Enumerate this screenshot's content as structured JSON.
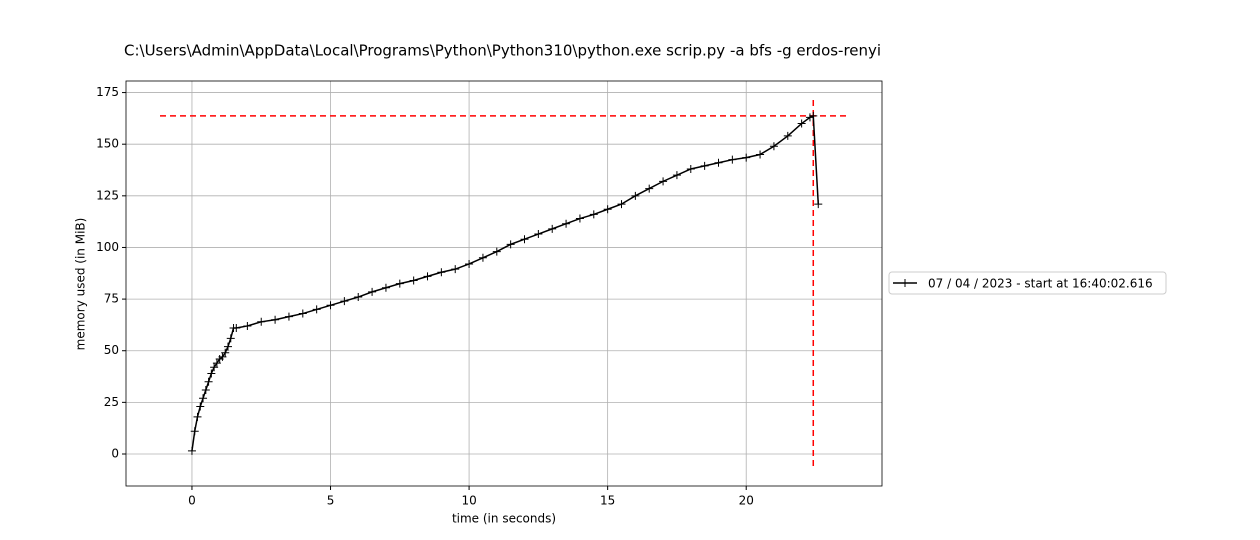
{
  "chart_data": {
    "type": "line",
    "title": "C:\\Users\\Admin\\AppData\\Local\\Programs\\Python\\Python310\\python.exe scrip.py -a bfs -g erdos-renyi",
    "x_label": "time (in seconds)",
    "y_label": "memory used (in MiB)",
    "xlim": [
      -2.38,
      24.9
    ],
    "ylim": [
      -15.5,
      180.6
    ],
    "xticks": [
      0,
      5,
      10,
      15,
      20
    ],
    "yticks": [
      0,
      25,
      50,
      75,
      100,
      125,
      150,
      175
    ],
    "grid": true,
    "legend": "right",
    "max_marker": {
      "x": 22.42,
      "y": 163.7,
      "color": "#ff0000"
    },
    "series": [
      {
        "name": "07 / 04 / 2023 - start at 16:40:02.616",
        "color": "#000000",
        "x": [
          0,
          0.1,
          0.2,
          0.3,
          0.4,
          0.5,
          0.6,
          0.7,
          0.8,
          0.9,
          1.0,
          1.1,
          1.2,
          1.3,
          1.4,
          1.5,
          1.6,
          2,
          2.5,
          3,
          3.5,
          4,
          4.5,
          5,
          5.5,
          6,
          6.5,
          7,
          7.5,
          8,
          8.5,
          9,
          9.5,
          10,
          10.5,
          11,
          11.5,
          12,
          12.5,
          13,
          13.5,
          14,
          14.5,
          15,
          15.5,
          16,
          16.5,
          17,
          17.5,
          18,
          18.5,
          19,
          19.5,
          20,
          20.5,
          21,
          21.5,
          22,
          22.3,
          22.42,
          22.6
        ],
        "values": [
          1.5,
          11,
          18,
          23,
          27,
          31,
          35,
          39,
          42,
          44,
          46,
          47,
          49,
          52,
          56,
          61,
          61,
          62,
          64,
          65,
          66.5,
          68,
          70,
          72,
          74,
          76,
          78.5,
          80.5,
          82.5,
          84,
          86,
          88,
          89.5,
          92,
          95,
          98,
          101.5,
          104,
          106.5,
          109,
          111.5,
          114,
          116,
          118.5,
          121,
          125,
          128.5,
          132,
          135,
          138,
          139.5,
          141,
          142.5,
          143.5,
          145,
          149,
          154,
          160,
          163,
          163.7,
          121
        ]
      }
    ]
  }
}
